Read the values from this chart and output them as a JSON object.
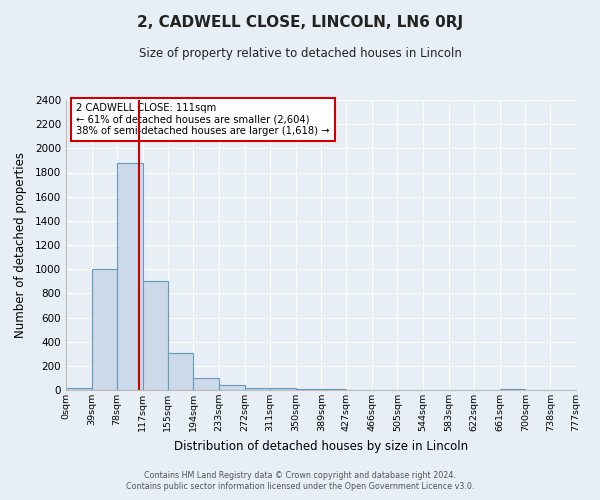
{
  "title": "2, CADWELL CLOSE, LINCOLN, LN6 0RJ",
  "subtitle": "Size of property relative to detached houses in Lincoln",
  "xlabel": "Distribution of detached houses by size in Lincoln",
  "ylabel": "Number of detached properties",
  "bar_color": "#ccd9e8",
  "bar_edge_color": "#6699bb",
  "background_color": "#e8eef5",
  "plot_bg_color": "#e8eef5",
  "grid_color": "#ffffff",
  "vline_x": 111,
  "vline_color": "#cc0000",
  "annotation_text": "2 CADWELL CLOSE: 111sqm\n← 61% of detached houses are smaller (2,604)\n38% of semi-detached houses are larger (1,618) →",
  "annotation_box_color": "#ffffff",
  "annotation_box_edge": "#cc0000",
  "bin_edges": [
    0,
    39,
    78,
    117,
    155,
    194,
    233,
    272,
    311,
    350,
    389,
    427,
    466,
    505,
    544,
    583,
    622,
    661,
    700,
    738,
    777
  ],
  "bin_counts": [
    20,
    1000,
    1880,
    900,
    310,
    100,
    45,
    20,
    15,
    10,
    8,
    0,
    0,
    0,
    0,
    0,
    0,
    5,
    0,
    0
  ],
  "ylim": [
    0,
    2400
  ],
  "yticks": [
    0,
    200,
    400,
    600,
    800,
    1000,
    1200,
    1400,
    1600,
    1800,
    2000,
    2200,
    2400
  ],
  "xtick_labels": [
    "0sqm",
    "39sqm",
    "78sqm",
    "117sqm",
    "155sqm",
    "194sqm",
    "233sqm",
    "272sqm",
    "311sqm",
    "350sqm",
    "389sqm",
    "427sqm",
    "466sqm",
    "505sqm",
    "544sqm",
    "583sqm",
    "622sqm",
    "661sqm",
    "700sqm",
    "738sqm",
    "777sqm"
  ],
  "footer1": "Contains HM Land Registry data © Crown copyright and database right 2024.",
  "footer2": "Contains public sector information licensed under the Open Government Licence v3.0."
}
